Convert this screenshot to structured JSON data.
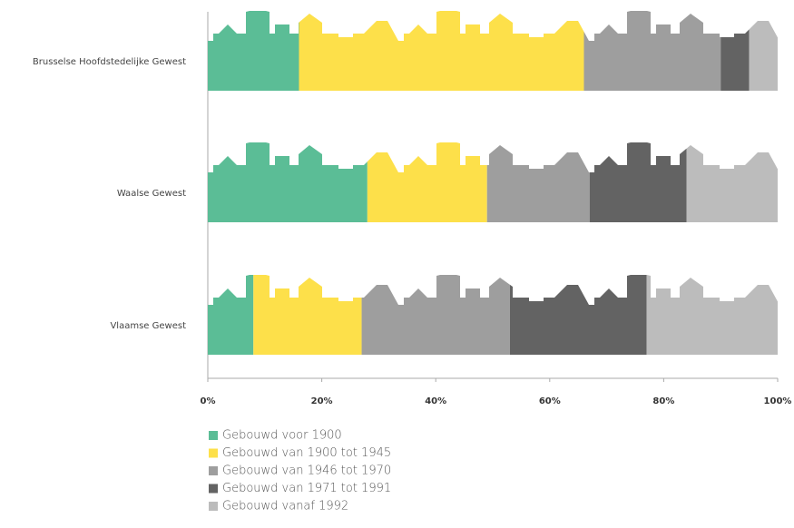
{
  "chart_data": {
    "type": "stacked-bar-horizontal",
    "categories": [
      "Brusselse Hoofdstedelijke Gewest",
      "Waalse Gewest",
      "Vlaamse Gewest"
    ],
    "series": [
      {
        "name": "Gebouwd voor 1900",
        "color": "#5bbd96",
        "values": [
          16,
          28,
          8
        ]
      },
      {
        "name": "Gebouwd van 1900 tot 1945",
        "color": "#fde04a",
        "values": [
          50,
          21,
          19
        ]
      },
      {
        "name": "Gebouwd van 1946 tot 1970",
        "color": "#9e9e9e",
        "values": [
          24,
          18,
          26
        ]
      },
      {
        "name": "Gebouwd van 1971 tot 1991",
        "color": "#636363",
        "values": [
          5,
          17,
          24
        ]
      },
      {
        "name": "Gebouwd vanaf 1992",
        "color": "#bcbcbc",
        "values": [
          5,
          16,
          23
        ]
      }
    ],
    "xlim": [
      0,
      100
    ],
    "xticks": [
      {
        "value": 0,
        "label": "0%"
      },
      {
        "value": 20,
        "label": "20%"
      },
      {
        "value": 40,
        "label": "40%"
      },
      {
        "value": 60,
        "label": "60%"
      },
      {
        "value": 80,
        "label": "80%"
      },
      {
        "value": 100,
        "label": "100%"
      }
    ],
    "legend": "bottom-left"
  }
}
